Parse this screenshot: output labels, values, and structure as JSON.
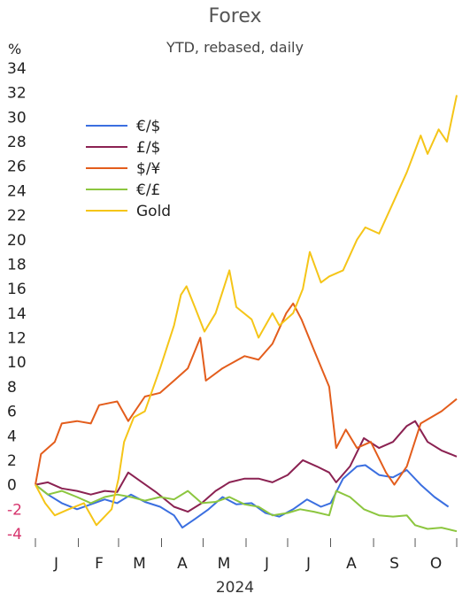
{
  "chart_data": {
    "type": "line",
    "title": "Forex",
    "subtitle": "YTD, rebased, daily",
    "ylabel": "%",
    "xlabel": "2024",
    "ylim": [
      -4,
      34
    ],
    "yticks": [
      34,
      32,
      30,
      28,
      26,
      24,
      22,
      20,
      18,
      16,
      14,
      12,
      10,
      8,
      6,
      4,
      2,
      0,
      -2,
      -4
    ],
    "x_range": [
      "2024-01-01",
      "2024-10-31"
    ],
    "month_labels": [
      "J",
      "F",
      "M",
      "A",
      "M",
      "J",
      "J",
      "A",
      "S",
      "O"
    ],
    "grid": false,
    "legend_position": "top-left",
    "series": [
      {
        "name": "€/$",
        "color": "#3b6fe0",
        "values": [
          [
            "2024-01-01",
            0
          ],
          [
            "2024-01-10",
            -0.8
          ],
          [
            "2024-01-20",
            -1.5
          ],
          [
            "2024-01-31",
            -2.0
          ],
          [
            "2024-02-10",
            -1.6
          ],
          [
            "2024-02-20",
            -1.2
          ],
          [
            "2024-02-29",
            -1.5
          ],
          [
            "2024-03-10",
            -0.8
          ],
          [
            "2024-03-20",
            -1.4
          ],
          [
            "2024-03-31",
            -1.8
          ],
          [
            "2024-04-10",
            -2.5
          ],
          [
            "2024-04-16",
            -3.5
          ],
          [
            "2024-04-25",
            -2.8
          ],
          [
            "2024-05-05",
            -2.0
          ],
          [
            "2024-05-15",
            -1.0
          ],
          [
            "2024-05-25",
            -1.6
          ],
          [
            "2024-06-05",
            -1.5
          ],
          [
            "2024-06-15",
            -2.3
          ],
          [
            "2024-06-25",
            -2.6
          ],
          [
            "2024-07-05",
            -2.0
          ],
          [
            "2024-07-15",
            -1.2
          ],
          [
            "2024-07-25",
            -1.8
          ],
          [
            "2024-08-01",
            -1.5
          ],
          [
            "2024-08-10",
            0.5
          ],
          [
            "2024-08-20",
            1.5
          ],
          [
            "2024-08-26",
            1.6
          ],
          [
            "2024-09-05",
            0.8
          ],
          [
            "2024-09-15",
            0.6
          ],
          [
            "2024-09-25",
            1.2
          ],
          [
            "2024-10-05",
            0.0
          ],
          [
            "2024-10-15",
            -1.0
          ],
          [
            "2024-10-25",
            -1.8
          ]
        ]
      },
      {
        "name": "£/$",
        "color": "#8b2252",
        "values": [
          [
            "2024-01-01",
            0
          ],
          [
            "2024-01-10",
            0.2
          ],
          [
            "2024-01-20",
            -0.3
          ],
          [
            "2024-01-31",
            -0.5
          ],
          [
            "2024-02-10",
            -0.8
          ],
          [
            "2024-02-20",
            -0.5
          ],
          [
            "2024-02-29",
            -0.6
          ],
          [
            "2024-03-08",
            1.0
          ],
          [
            "2024-03-18",
            0.2
          ],
          [
            "2024-03-28",
            -0.6
          ],
          [
            "2024-04-10",
            -1.8
          ],
          [
            "2024-04-20",
            -2.2
          ],
          [
            "2024-04-30",
            -1.5
          ],
          [
            "2024-05-10",
            -0.5
          ],
          [
            "2024-05-20",
            0.2
          ],
          [
            "2024-05-31",
            0.5
          ],
          [
            "2024-06-10",
            0.5
          ],
          [
            "2024-06-20",
            0.2
          ],
          [
            "2024-07-01",
            0.8
          ],
          [
            "2024-07-12",
            2.0
          ],
          [
            "2024-07-22",
            1.5
          ],
          [
            "2024-07-31",
            1.0
          ],
          [
            "2024-08-05",
            0.2
          ],
          [
            "2024-08-15",
            1.5
          ],
          [
            "2024-08-25",
            3.8
          ],
          [
            "2024-09-05",
            3.0
          ],
          [
            "2024-09-15",
            3.5
          ],
          [
            "2024-09-25",
            4.8
          ],
          [
            "2024-10-01",
            5.2
          ],
          [
            "2024-10-10",
            3.5
          ],
          [
            "2024-10-20",
            2.8
          ],
          [
            "2024-10-31",
            2.3
          ]
        ]
      },
      {
        "name": "$/¥",
        "color": "#e35d1c",
        "values": [
          [
            "2024-01-01",
            0
          ],
          [
            "2024-01-05",
            2.5
          ],
          [
            "2024-01-15",
            3.5
          ],
          [
            "2024-01-20",
            5.0
          ],
          [
            "2024-01-31",
            5.2
          ],
          [
            "2024-02-10",
            5.0
          ],
          [
            "2024-02-16",
            6.5
          ],
          [
            "2024-02-29",
            6.8
          ],
          [
            "2024-03-08",
            5.2
          ],
          [
            "2024-03-20",
            7.2
          ],
          [
            "2024-03-31",
            7.5
          ],
          [
            "2024-04-10",
            8.5
          ],
          [
            "2024-04-20",
            9.5
          ],
          [
            "2024-04-29",
            12.0
          ],
          [
            "2024-05-03",
            8.5
          ],
          [
            "2024-05-15",
            9.5
          ],
          [
            "2024-05-31",
            10.5
          ],
          [
            "2024-06-10",
            10.2
          ],
          [
            "2024-06-20",
            11.5
          ],
          [
            "2024-06-30",
            14.0
          ],
          [
            "2024-07-05",
            14.8
          ],
          [
            "2024-07-11",
            13.5
          ],
          [
            "2024-07-20",
            11.0
          ],
          [
            "2024-07-31",
            8.0
          ],
          [
            "2024-08-05",
            3.0
          ],
          [
            "2024-08-12",
            4.5
          ],
          [
            "2024-08-20",
            3.0
          ],
          [
            "2024-08-30",
            3.5
          ],
          [
            "2024-09-10",
            1.0
          ],
          [
            "2024-09-16",
            0.0
          ],
          [
            "2024-09-25",
            1.5
          ],
          [
            "2024-10-05",
            5.0
          ],
          [
            "2024-10-20",
            6.0
          ],
          [
            "2024-10-31",
            7.0
          ]
        ]
      },
      {
        "name": "€/£",
        "color": "#8cc63f",
        "values": [
          [
            "2024-01-01",
            0
          ],
          [
            "2024-01-10",
            -0.8
          ],
          [
            "2024-01-20",
            -0.5
          ],
          [
            "2024-01-31",
            -1.0
          ],
          [
            "2024-02-10",
            -1.5
          ],
          [
            "2024-02-20",
            -1.0
          ],
          [
            "2024-02-29",
            -0.8
          ],
          [
            "2024-03-10",
            -1.0
          ],
          [
            "2024-03-20",
            -1.3
          ],
          [
            "2024-03-31",
            -1.0
          ],
          [
            "2024-04-10",
            -1.2
          ],
          [
            "2024-04-20",
            -0.5
          ],
          [
            "2024-04-30",
            -1.5
          ],
          [
            "2024-05-10",
            -1.4
          ],
          [
            "2024-05-20",
            -1.0
          ],
          [
            "2024-05-31",
            -1.6
          ],
          [
            "2024-06-10",
            -1.8
          ],
          [
            "2024-06-20",
            -2.5
          ],
          [
            "2024-07-01",
            -2.3
          ],
          [
            "2024-07-10",
            -2.0
          ],
          [
            "2024-07-20",
            -2.2
          ],
          [
            "2024-07-31",
            -2.5
          ],
          [
            "2024-08-05",
            -0.5
          ],
          [
            "2024-08-15",
            -1.0
          ],
          [
            "2024-08-25",
            -2.0
          ],
          [
            "2024-09-05",
            -2.5
          ],
          [
            "2024-09-15",
            -2.6
          ],
          [
            "2024-09-25",
            -2.5
          ],
          [
            "2024-10-01",
            -3.3
          ],
          [
            "2024-10-10",
            -3.6
          ],
          [
            "2024-10-20",
            -3.5
          ],
          [
            "2024-10-31",
            -3.8
          ]
        ]
      },
      {
        "name": "Gold",
        "color": "#f5c518",
        "values": [
          [
            "2024-01-01",
            0
          ],
          [
            "2024-01-08",
            -1.5
          ],
          [
            "2024-01-15",
            -2.5
          ],
          [
            "2024-01-25",
            -2.0
          ],
          [
            "2024-02-05",
            -1.5
          ],
          [
            "2024-02-14",
            -3.3
          ],
          [
            "2024-02-25",
            -2.0
          ],
          [
            "2024-03-01",
            0.5
          ],
          [
            "2024-03-05",
            3.5
          ],
          [
            "2024-03-12",
            5.5
          ],
          [
            "2024-03-20",
            6.0
          ],
          [
            "2024-03-31",
            9.5
          ],
          [
            "2024-04-10",
            13.0
          ],
          [
            "2024-04-15",
            15.5
          ],
          [
            "2024-04-19",
            16.2
          ],
          [
            "2024-04-25",
            14.5
          ],
          [
            "2024-05-02",
            12.5
          ],
          [
            "2024-05-10",
            14.0
          ],
          [
            "2024-05-20",
            17.5
          ],
          [
            "2024-05-25",
            14.5
          ],
          [
            "2024-06-05",
            13.5
          ],
          [
            "2024-06-10",
            12.0
          ],
          [
            "2024-06-20",
            14.0
          ],
          [
            "2024-06-25",
            13.0
          ],
          [
            "2024-07-05",
            14.0
          ],
          [
            "2024-07-12",
            16.0
          ],
          [
            "2024-07-17",
            19.0
          ],
          [
            "2024-07-25",
            16.5
          ],
          [
            "2024-07-31",
            17.0
          ],
          [
            "2024-08-10",
            17.5
          ],
          [
            "2024-08-20",
            20.0
          ],
          [
            "2024-08-26",
            21.0
          ],
          [
            "2024-09-05",
            20.5
          ],
          [
            "2024-09-15",
            23.0
          ],
          [
            "2024-09-25",
            25.5
          ],
          [
            "2024-09-30",
            27.0
          ],
          [
            "2024-10-05",
            28.5
          ],
          [
            "2024-10-10",
            27.0
          ],
          [
            "2024-10-18",
            29.0
          ],
          [
            "2024-10-24",
            28.0
          ],
          [
            "2024-10-31",
            31.8
          ]
        ]
      }
    ]
  }
}
